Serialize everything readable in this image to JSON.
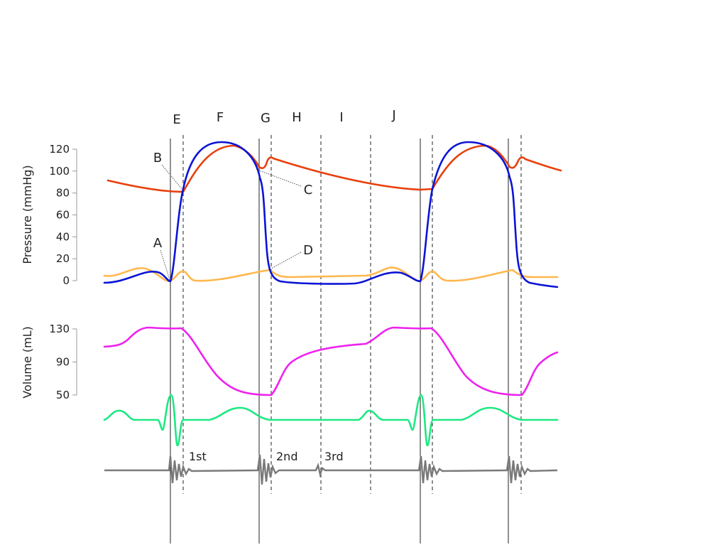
{
  "phase_labels": [
    "E",
    "F",
    "G",
    "H",
    "I",
    "J"
  ],
  "callouts": [
    "A",
    "B",
    "C",
    "D"
  ],
  "pressure_axis": {
    "label": "Pressure (mmHg)",
    "ticks": [
      0,
      20,
      40,
      60,
      80,
      100,
      120
    ]
  },
  "volume_axis": {
    "label": "Volume (mL)",
    "ticks": [
      50,
      90,
      130
    ]
  },
  "heart_sounds": [
    "1st",
    "2nd",
    "3rd"
  ]
}
